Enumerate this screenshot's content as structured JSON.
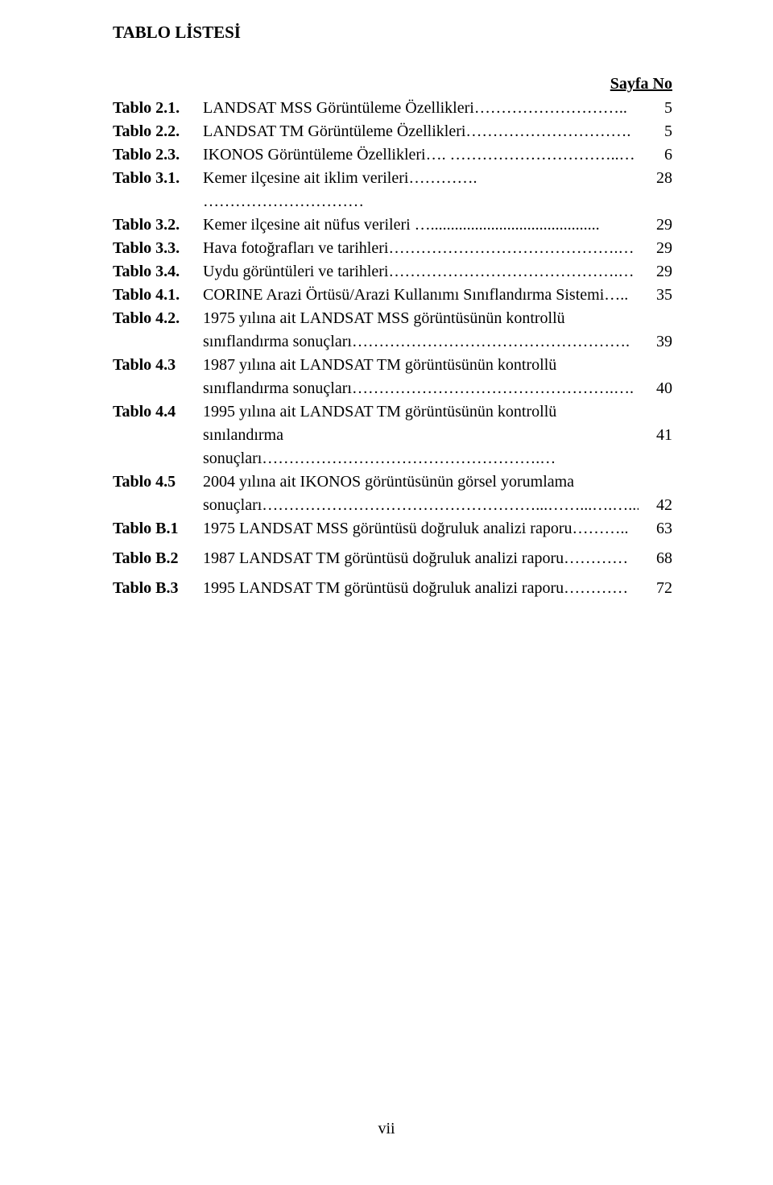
{
  "heading": "TABLO LİSTESİ",
  "page_no_label": "Sayfa No",
  "footer": "vii",
  "dot_style": "……………………",
  "entries": [
    {
      "label": "Tablo 2.1.",
      "lines": [
        "LANDSAT MSS Görüntüleme Özellikleri……………………….."
      ],
      "page": "5"
    },
    {
      "label": "Tablo 2.2.",
      "lines": [
        "LANDSAT TM Görüntüleme Özellikleri…………………………."
      ],
      "page": "5"
    },
    {
      "label": "Tablo 2.3.",
      "lines": [
        "IKONOS Görüntüleme Özellikleri…. …………………………..…"
      ],
      "page": "6"
    },
    {
      "label": "Tablo 3.1.",
      "lines": [
        "Kemer ilçesine ait iklim verileri…………. …………………………"
      ],
      "page": "28"
    },
    {
      "label": "Tablo 3.2.",
      "lines": [
        "Kemer ilçesine ait nüfus verileri ….........................................."
      ],
      "page": "29"
    },
    {
      "label": "Tablo 3.3.",
      "lines": [
        "Hava fotoğrafları ve tarihleri…………………………………….…"
      ],
      "page": "29"
    },
    {
      "label": "Tablo 3.4.",
      "lines": [
        "Uydu görüntüleri ve tarihleri…………………………………….…"
      ],
      "page": "29"
    },
    {
      "label": "Tablo 4.1.",
      "lines": [
        "CORINE Arazi Örtüsü/Arazi Kullanımı Sınıflandırma Sistemi….."
      ],
      "page": "35"
    },
    {
      "label": "Tablo 4.2.",
      "lines": [
        "1975 yılına ait LANDSAT MSS görüntüsünün kontrollü",
        "sınıflandırma sonuçları……………………………………………."
      ],
      "page": "39"
    },
    {
      "label": "Tablo 4.3",
      "lines": [
        "1987 yılına ait LANDSAT TM görüntüsünün kontrollü",
        "sınıflandırma sonuçları………………………………………….…."
      ],
      "page": "40"
    },
    {
      "label": "Tablo 4.4",
      "lines": [
        "1995 yılına ait LANDSAT TM görüntüsünün kontrollü",
        "sınılandırma sonuçları…………………………………………….…"
      ],
      "page": "41"
    },
    {
      "label": "Tablo 4.5",
      "lines": [
        " 2004 yılına ait IKONOS görüntüsünün görsel yorumlama",
        "sonuçları……………………………………………...……...….…..."
      ],
      "page": "42"
    },
    {
      "label": "Tablo B.1",
      "lines": [
        "1975 LANDSAT MSS görüntüsü doğruluk analizi raporu……….."
      ],
      "page": "63"
    },
    {
      "label": "Tablo B.2",
      "lines": [
        "1987 LANDSAT TM görüntüsü doğruluk analizi raporu…………"
      ],
      "page": "68",
      "gap": "b2"
    },
    {
      "label": "Tablo B.3",
      "lines": [
        "1995 LANDSAT TM görüntüsü doğruluk analizi raporu…………"
      ],
      "page": "72",
      "gap": "b3"
    }
  ],
  "colors": {
    "text": "#000000",
    "background": "#ffffff"
  },
  "typography": {
    "family": "Times New Roman",
    "body_size_pt": 15,
    "heading_size_pt": 16,
    "heading_weight": "bold",
    "label_weight": "bold"
  }
}
